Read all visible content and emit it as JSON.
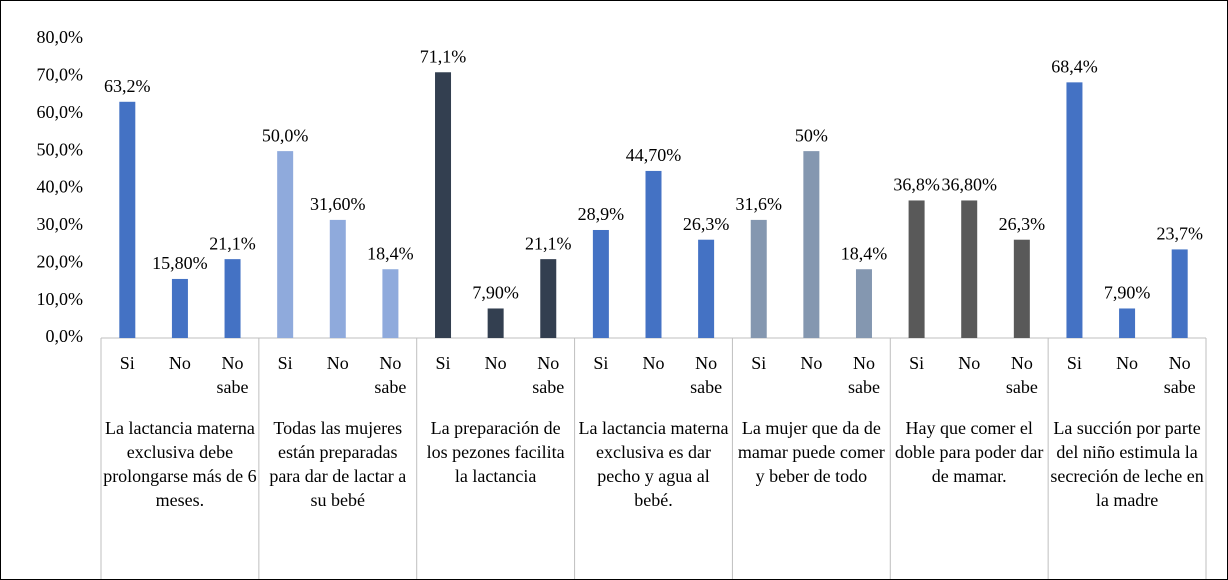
{
  "chart_data": {
    "type": "bar",
    "ylim": [
      0,
      80
    ],
    "yticks": [
      {
        "value": 0,
        "label": "0,0%"
      },
      {
        "value": 10,
        "label": "10,0%"
      },
      {
        "value": 20,
        "label": "20,0%"
      },
      {
        "value": 30,
        "label": "30,0%"
      },
      {
        "value": 40,
        "label": "40,0%"
      },
      {
        "value": 50,
        "label": "50,0%"
      },
      {
        "value": 60,
        "label": "60,0%"
      },
      {
        "value": 70,
        "label": "70,0%"
      },
      {
        "value": 80,
        "label": "80,0%"
      }
    ],
    "grid": false,
    "groups": [
      {
        "name": "La lactancia materna exclusiva debe prolongarse más de 6 meses.",
        "color": "#4472c4",
        "categories": [
          "Si",
          "No",
          "No sabe"
        ],
        "values": [
          63.2,
          15.8,
          21.1
        ],
        "value_labels": [
          "63,2%",
          "15,80%",
          "21,1%"
        ]
      },
      {
        "name": "Todas las mujeres están preparadas para dar de lactar a su bebé",
        "color": "#8faadc",
        "categories": [
          "Si",
          "No",
          "No sabe"
        ],
        "values": [
          50.0,
          31.6,
          18.4
        ],
        "value_labels": [
          "50,0%",
          "31,60%",
          "18,4%"
        ]
      },
      {
        "name": "La preparación de los pezones facilita la lactancia",
        "color": "#333f50",
        "categories": [
          "Si",
          "No",
          "No sabe"
        ],
        "values": [
          71.1,
          7.9,
          21.1
        ],
        "value_labels": [
          "71,1%",
          "7,90%",
          "21,1%"
        ]
      },
      {
        "name": "La lactancia materna exclusiva es dar pecho y agua al bebé.",
        "color": "#4472c4",
        "categories": [
          "Si",
          "No",
          "No sabe"
        ],
        "values": [
          28.9,
          44.7,
          26.3
        ],
        "value_labels": [
          "28,9%",
          "44,70%",
          "26,3%"
        ]
      },
      {
        "name": "La mujer que da de mamar puede comer y beber de todo",
        "color": "#8497b0",
        "categories": [
          "Si",
          "No",
          "No sabe"
        ],
        "values": [
          31.6,
          50,
          18.4
        ],
        "value_labels": [
          "31,6%",
          "50%",
          "18,4%"
        ]
      },
      {
        "name": "Hay que comer el doble para poder dar de mamar.",
        "color": "#595959",
        "categories": [
          "Si",
          "No",
          "No sabe"
        ],
        "values": [
          36.8,
          36.8,
          26.3
        ],
        "value_labels": [
          "36,8%",
          "36,80%",
          "26,3%"
        ]
      },
      {
        "name": "La succión por parte del niño estimula la secreción de leche en la madre",
        "color": "#4472c4",
        "categories": [
          "Si",
          "No",
          "No sabe"
        ],
        "values": [
          68.4,
          7.9,
          23.7
        ],
        "value_labels": [
          "68,4%",
          "7,90%",
          "23,7%"
        ]
      }
    ]
  }
}
